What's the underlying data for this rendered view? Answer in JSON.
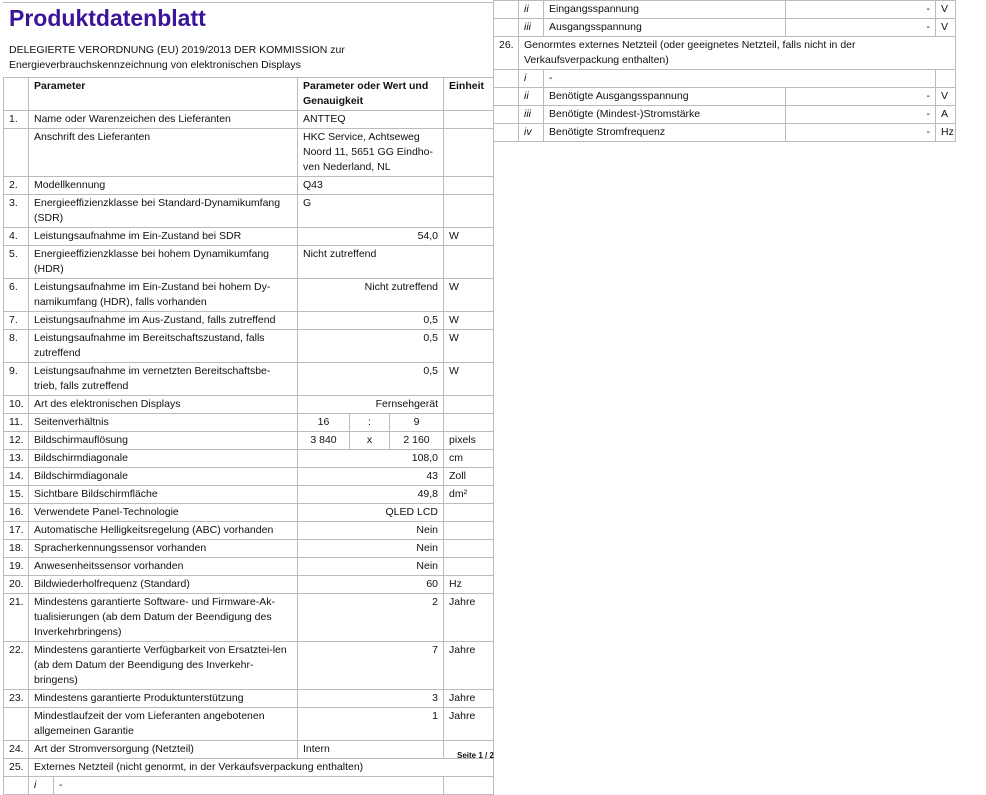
{
  "title": "Produktdatenblatt",
  "subtitle_1": "DELEGIERTE VERORDNUNG (EU) 2019/2013 DER KOMMISSION zur",
  "subtitle_2": "Energieverbrauchskennzeichnung von elektronischen Displays",
  "colors": {
    "title": "#3a1597",
    "border": "#bbbbbb"
  },
  "header": {
    "param": "Parameter",
    "value": "Parameter oder Wert und Genauigkeit",
    "unit": "Einheit"
  },
  "rows": [
    {
      "num": "1.",
      "param": "Name oder Warenzeichen des Lieferanten",
      "value": "ANTTEQ",
      "align": "left",
      "unit": ""
    },
    {
      "num": "",
      "param": "Anschrift des Lieferanten",
      "value": "HKC Service, Achtseweg Noord 11, 5651 GG Eindho-ven Nederland, NL",
      "align": "left",
      "unit": ""
    },
    {
      "num": "2.",
      "param": "Modellkennung",
      "value": "Q43",
      "align": "left",
      "unit": ""
    },
    {
      "num": "3.",
      "param": "Energieeffizienzklasse bei Standard-Dynamikumfang (SDR)",
      "value": "G",
      "align": "left",
      "unit": ""
    },
    {
      "num": "4.",
      "param": "Leistungsaufnahme im Ein-Zustand bei SDR",
      "value": "54,0",
      "align": "right",
      "unit": "W"
    },
    {
      "num": "5.",
      "param": "Energieeffizienzklasse bei hohem Dynamikumfang (HDR)",
      "value": "Nicht zutreffend",
      "align": "left",
      "unit": ""
    },
    {
      "num": "6.",
      "param": "Leistungsaufnahme im Ein-Zustand bei hohem Dy-namikumfang (HDR), falls vorhanden",
      "value": "Nicht zutreffend",
      "align": "right",
      "unit": "W"
    },
    {
      "num": "7.",
      "param": "Leistungsaufnahme im Aus-Zustand, falls zutreffend",
      "value": "0,5",
      "align": "right",
      "unit": "W"
    },
    {
      "num": "8.",
      "param": "Leistungsaufnahme im Bereitschaftszustand, falls zutreffend",
      "value": "0,5",
      "align": "right",
      "unit": "W"
    },
    {
      "num": "9.",
      "param": "Leistungsaufnahme im vernetzten Bereitschaftsbe-trieb, falls zutreffend",
      "value": "0,5",
      "align": "right",
      "unit": "W"
    },
    {
      "num": "10.",
      "param": "Art des elektronischen Displays",
      "value": "Fernsehgerät",
      "align": "right",
      "unit": ""
    },
    {
      "num": "11.",
      "param": "Seitenverhältnis",
      "split": [
        "16",
        ":",
        "9"
      ],
      "unit": ""
    },
    {
      "num": "12.",
      "param": "Bildschirmauflösung",
      "split": [
        "3 840",
        "x",
        "2 160"
      ],
      "unit": "pixels"
    },
    {
      "num": "13.",
      "param": "Bildschirmdiagonale",
      "value": "108,0",
      "align": "right",
      "unit": "cm"
    },
    {
      "num": "14.",
      "param": "Bildschirmdiagonale",
      "value": "43",
      "align": "right",
      "unit": "Zoll"
    },
    {
      "num": "15.",
      "param": "Sichtbare Bildschirmfläche",
      "value": "49,8",
      "align": "right",
      "unit": "dm²"
    },
    {
      "num": "16.",
      "param": "Verwendete Panel-Technologie",
      "value": "QLED LCD",
      "align": "right",
      "unit": ""
    },
    {
      "num": "17.",
      "param": "Automatische Helligkeitsregelung (ABC) vorhanden",
      "value": "Nein",
      "align": "right",
      "unit": ""
    },
    {
      "num": "18.",
      "param": "Spracherkennungssensor vorhanden",
      "value": "Nein",
      "align": "right",
      "unit": ""
    },
    {
      "num": "19.",
      "param": "Anwesenheitssensor vorhanden",
      "value": "Nein",
      "align": "right",
      "unit": ""
    },
    {
      "num": "20.",
      "param": "Bildwiederholfrequenz (Standard)",
      "value": "60",
      "align": "right",
      "unit": "Hz"
    },
    {
      "num": "21.",
      "param": "Mindestens garantierte Software- und Firmware-Ak-tualisierungen (ab dem Datum der Beendigung des Inverkehrbringens)",
      "value": "2",
      "align": "right",
      "unit": "Jahre"
    },
    {
      "num": "22.",
      "param": "Mindestens garantierte Verfügbarkeit von Ersatztei-len (ab dem Datum der Beendigung des Inverkehr-bringens)",
      "value": "7",
      "align": "right",
      "unit": "Jahre"
    },
    {
      "num": "23.",
      "param": "Mindestens garantierte Produktunterstützung",
      "value": "3",
      "align": "right",
      "unit": "Jahre"
    },
    {
      "num": "",
      "param": "Mindestlaufzeit der vom Lieferanten angebotenen allgemeinen Garantie",
      "value": "1",
      "align": "right",
      "unit": "Jahre"
    },
    {
      "num": "24.",
      "param": "Art der Stromversorgung (Netzteil)",
      "value": "Intern",
      "align": "left",
      "unit": ""
    },
    {
      "num": "25.",
      "full": "Externes Netzteil (nicht genormt, in der Verkaufsverpackung enthalten)"
    },
    {
      "num": "",
      "roman": "i",
      "text": "-"
    }
  ],
  "right_rows": [
    {
      "roman": "ii",
      "label": "Eingangsspannung",
      "value": "-",
      "unit": "V"
    },
    {
      "roman": "iii",
      "label": "Ausgangsspannung",
      "value": "-",
      "unit": "V"
    },
    {
      "num": "26.",
      "full": "Genormtes externes Netzteil (oder geeignetes Netzteil, falls nicht in der Verkaufsverpackung enthalten)"
    },
    {
      "roman": "i",
      "text": "-"
    },
    {
      "roman": "ii",
      "label": "Benötigte Ausgangsspannung",
      "value": "-",
      "unit": "V"
    },
    {
      "roman": "iii",
      "label": "Benötigte (Mindest-)Stromstärke",
      "value": "-",
      "unit": "A"
    },
    {
      "roman": "iv",
      "label": "Benötigte Stromfrequenz",
      "value": "-",
      "unit": "Hz"
    }
  ],
  "page": "Seite 1 / 2"
}
